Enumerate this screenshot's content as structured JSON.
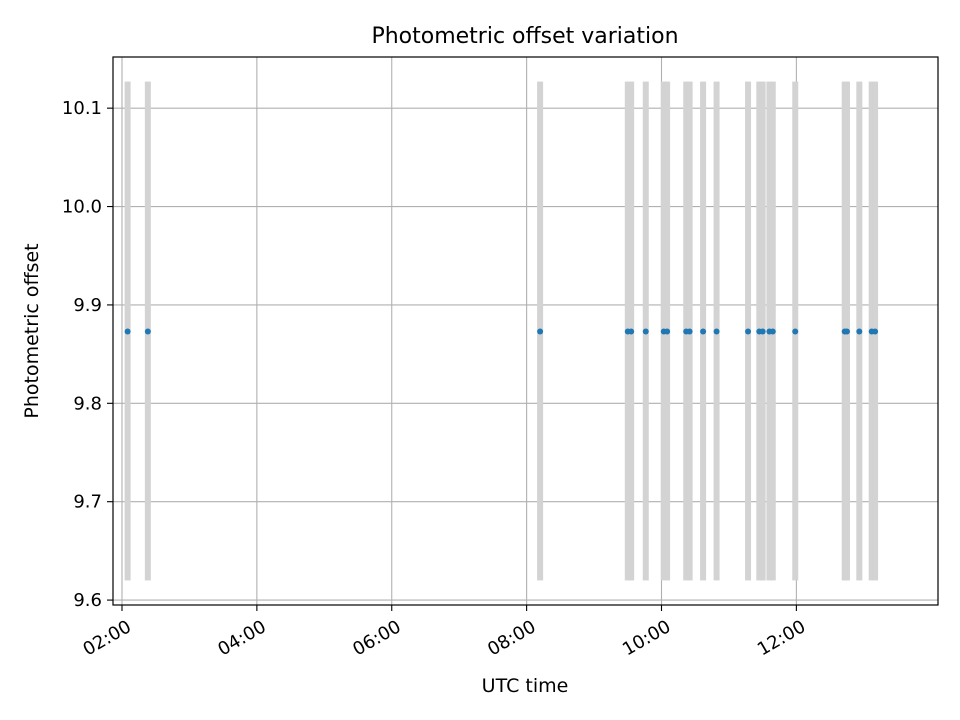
{
  "chart_data": {
    "type": "scatter",
    "title": "Photometric offset variation",
    "xlabel": "UTC time",
    "ylabel": "Photometric offset",
    "x_unit": "UTC time of day",
    "xlim": [
      "01:52",
      "14:06"
    ],
    "ylim": [
      9.595,
      10.152
    ],
    "x_ticks": [
      "02:00",
      "04:00",
      "06:00",
      "08:00",
      "10:00",
      "12:00"
    ],
    "y_ticks": [
      9.6,
      9.7,
      9.8,
      9.9,
      10.0,
      10.1
    ],
    "y_tick_labels": [
      "9.6",
      "9.7",
      "9.8",
      "9.9",
      "10.0",
      "10.1"
    ],
    "grid": true,
    "legend": "none",
    "band_range": [
      9.62,
      10.127
    ],
    "series": [
      {
        "color": "#1f77b4",
        "times": [
          "02:05",
          "02:23",
          "08:12",
          "09:30",
          "09:33",
          "09:46",
          "10:02",
          "10:05",
          "10:22",
          "10:25",
          "10:37",
          "10:49",
          "11:17",
          "11:27",
          "11:30",
          "11:36",
          "11:39",
          "11:59",
          "12:43",
          "12:45",
          "12:56",
          "13:07",
          "13:10"
        ],
        "values": [
          9.873,
          9.873,
          9.873,
          9.873,
          9.873,
          9.873,
          9.873,
          9.873,
          9.873,
          9.873,
          9.873,
          9.873,
          9.873,
          9.873,
          9.873,
          9.873,
          9.873,
          9.873,
          9.873,
          9.873,
          9.873,
          9.873,
          9.873
        ]
      }
    ],
    "band_color": "#d3d3d3"
  }
}
